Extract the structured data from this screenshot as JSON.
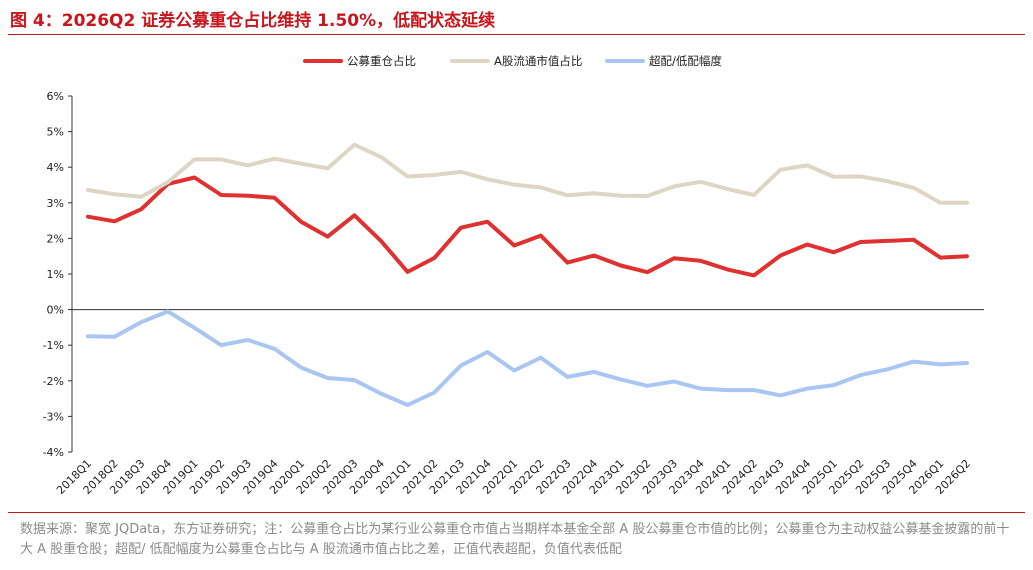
{
  "title": "图 4：2026Q2 证券公募重仓占比维持 1.50%，低配状态延续",
  "source": "数据来源：聚宽 JQData，东方证券研究；注：公募重仓占比为某行业公募重仓市值占当期样本基金全部 A 股公募重仓市值的比例；公募重仓为主动权益公募基金披露的前十大 A 股重仓股；超配/ 低配幅度为公募重仓占比与 A 股流通市值占比之差，正值代表超配，负值代表低配",
  "colors": {
    "accent": "#c8161d",
    "series1": "#e03131",
    "series2": "#ddd6c4",
    "series3": "#a9c6f2"
  },
  "chart_data": {
    "type": "line",
    "categories": [
      "2018Q1",
      "2018Q2",
      "2018Q3",
      "2018Q4",
      "2019Q1",
      "2019Q2",
      "2019Q3",
      "2019Q4",
      "2020Q1",
      "2020Q2",
      "2020Q3",
      "2020Q4",
      "2021Q1",
      "2021Q2",
      "2021Q3",
      "2021Q4",
      "2022Q1",
      "2022Q2",
      "2022Q3",
      "2022Q4",
      "2023Q1",
      "2023Q2",
      "2023Q3",
      "2023Q4",
      "2024Q1",
      "2024Q2",
      "2024Q3",
      "2024Q4",
      "2025Q1",
      "2025Q2",
      "2025Q3",
      "2025Q4",
      "2026Q1",
      "2026Q2"
    ],
    "ylim": [
      -4,
      6
    ],
    "yticks": [
      "6%",
      "5%",
      "4%",
      "3%",
      "2%",
      "1%",
      "0%",
      "-1%",
      "-2%",
      "-3%",
      "-4%"
    ],
    "legend_position": "top-center",
    "grid": false,
    "series": [
      {
        "name": "公募重仓占比",
        "values": [
          2.61,
          2.48,
          2.82,
          3.53,
          3.71,
          3.22,
          3.2,
          3.14,
          2.47,
          2.05,
          2.65,
          1.93,
          1.06,
          1.45,
          2.3,
          2.47,
          1.8,
          2.08,
          1.32,
          1.52,
          1.24,
          1.05,
          1.44,
          1.37,
          1.13,
          0.96,
          1.52,
          1.83,
          1.61,
          1.9,
          1.93,
          1.96,
          1.46,
          1.5
        ]
      },
      {
        "name": "A股流通市值占比",
        "values": [
          3.36,
          3.24,
          3.17,
          3.58,
          4.22,
          4.22,
          4.05,
          4.24,
          4.1,
          3.97,
          4.63,
          4.29,
          3.74,
          3.78,
          3.87,
          3.66,
          3.51,
          3.43,
          3.21,
          3.27,
          3.2,
          3.19,
          3.46,
          3.59,
          3.39,
          3.22,
          3.93,
          4.05,
          3.73,
          3.74,
          3.61,
          3.42,
          3.0,
          3.0
        ]
      },
      {
        "name": "超配/低配幅度",
        "values": [
          -0.75,
          -0.76,
          -0.35,
          -0.05,
          -0.51,
          -1.0,
          -0.85,
          -1.1,
          -1.63,
          -1.92,
          -1.98,
          -2.36,
          -2.68,
          -2.33,
          -1.57,
          -1.19,
          -1.71,
          -1.35,
          -1.89,
          -1.75,
          -1.96,
          -2.14,
          -2.02,
          -2.22,
          -2.26,
          -2.26,
          -2.41,
          -2.22,
          -2.12,
          -1.84,
          -1.68,
          -1.46,
          -1.54,
          -1.5
        ]
      }
    ]
  }
}
